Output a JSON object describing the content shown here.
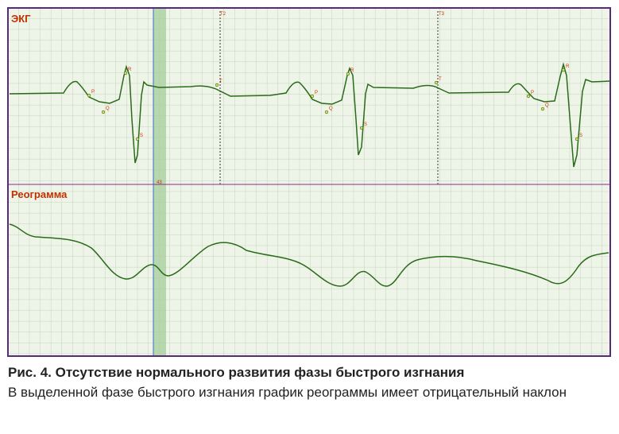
{
  "figure": {
    "panels": {
      "ecg": "ЭКГ",
      "rheogram": "Реограмма"
    },
    "markers": [
      "T2",
      "T3",
      "43"
    ],
    "ecg_points": [
      "P",
      "Q",
      "R",
      "S",
      "T",
      "P",
      "Q",
      "R",
      "S",
      "T",
      "P",
      "Q",
      "R",
      "S"
    ],
    "caption": {
      "title": "Рис. 4. Отсутствие нормального развития фазы быстрого изгнания",
      "text": "В выделенной фазе быстрого изгнания график реограммы имеет отрицательный наклон"
    }
  }
}
